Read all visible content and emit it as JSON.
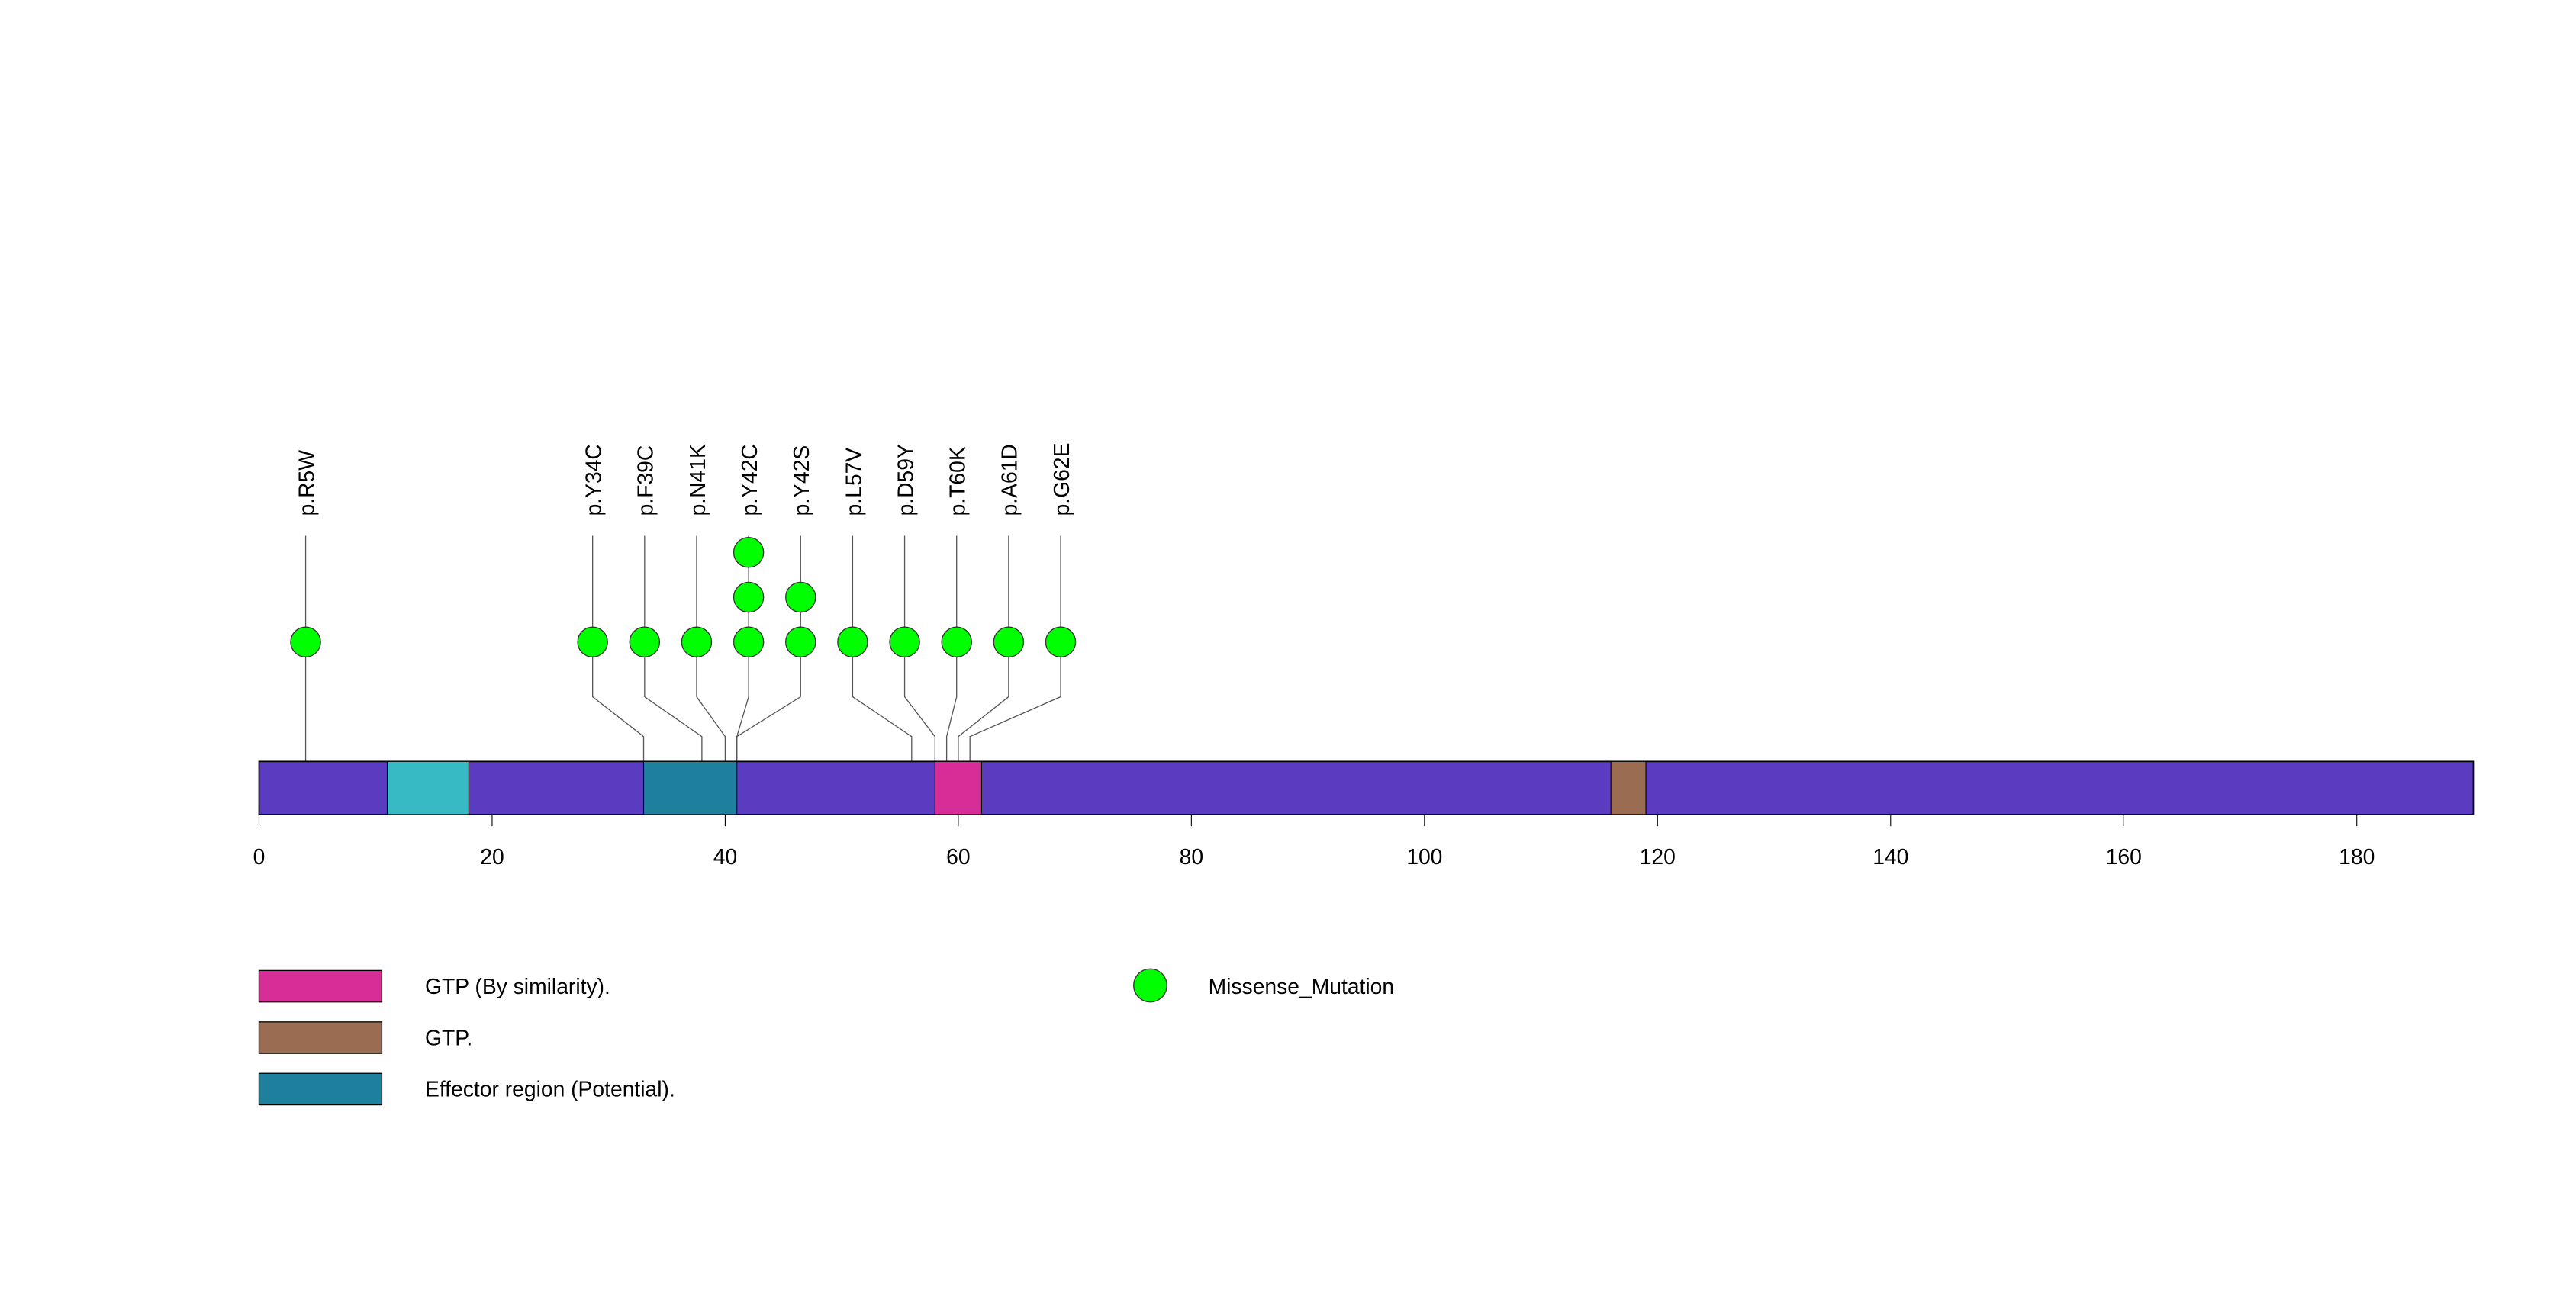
{
  "chart_data": {
    "type": "lollipop",
    "protein_length": 190,
    "xlim": [
      0,
      190
    ],
    "x_ticks": [
      0,
      20,
      40,
      60,
      80,
      100,
      120,
      140,
      160,
      180
    ],
    "backbone_color": "#5b3bbf",
    "domains": [
      {
        "name": "",
        "start": 11,
        "end": 18,
        "color": "#38bac4"
      },
      {
        "name": "Effector region (Potential).",
        "start": 33,
        "end": 41,
        "color": "#1f809e"
      },
      {
        "name": "GTP (By similarity).",
        "start": 58,
        "end": 62,
        "color": "#d62e96"
      },
      {
        "name": "GTP.",
        "start": 116,
        "end": 119,
        "color": "#9a6d52"
      }
    ],
    "mutations": [
      {
        "label": "p.R5W",
        "position": 4,
        "count": 1
      },
      {
        "label": "p.Y34C",
        "position": 33,
        "count": 1
      },
      {
        "label": "p.F39C",
        "position": 38,
        "count": 1
      },
      {
        "label": "p.N41K",
        "position": 40,
        "count": 1
      },
      {
        "label": "p.Y42C",
        "position": 41,
        "count": 3
      },
      {
        "label": "p.Y42S",
        "position": 41,
        "count": 2
      },
      {
        "label": "p.L57V",
        "position": 56,
        "count": 1
      },
      {
        "label": "p.D59Y",
        "position": 58,
        "count": 1
      },
      {
        "label": "p.T60K",
        "position": 59,
        "count": 1
      },
      {
        "label": "p.A61D",
        "position": 60,
        "count": 1
      },
      {
        "label": "p.G62E",
        "position": 61,
        "count": 1
      }
    ],
    "mutation_color": "#00ff00",
    "legend": [
      {
        "label": "GTP (By similarity).",
        "color": "#d62e96",
        "shape": "rect"
      },
      {
        "label": "GTP.",
        "color": "#9a6d52",
        "shape": "rect"
      },
      {
        "label": "Effector region (Potential).",
        "color": "#1f809e",
        "shape": "rect"
      },
      {
        "label": "Missense_Mutation",
        "color": "#00ff00",
        "shape": "circle"
      }
    ]
  }
}
